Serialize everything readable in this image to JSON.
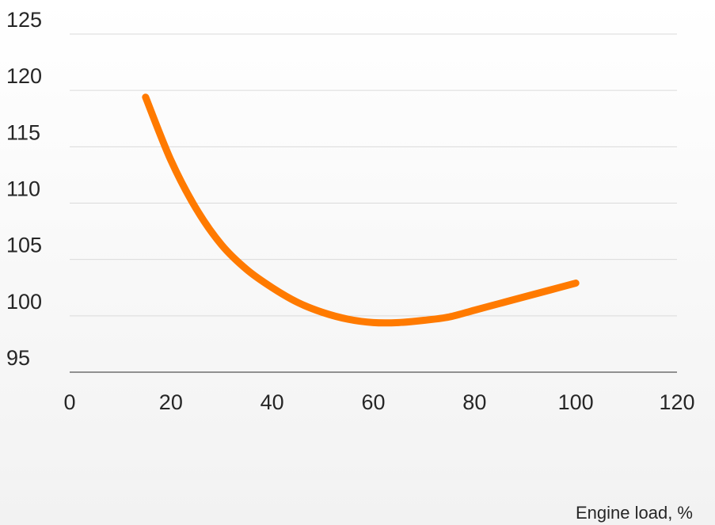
{
  "chart_data": {
    "type": "line",
    "title": "",
    "xlabel": "Engine load, %",
    "ylabel": "",
    "xlim": [
      0,
      120
    ],
    "ylim": [
      95,
      125
    ],
    "x_ticks": [
      0,
      20,
      40,
      60,
      80,
      100,
      120
    ],
    "y_ticks": [
      95,
      100,
      105,
      110,
      115,
      120,
      125
    ],
    "grid": "horizontal",
    "legend": "none",
    "series": [
      {
        "color": "#ff7a00",
        "x": [
          15,
          20,
          25,
          30,
          35,
          40,
          45,
          50,
          55,
          60,
          65,
          70,
          75,
          80,
          85,
          90,
          95,
          100
        ],
        "y": [
          119.4,
          113.8,
          109.5,
          106.3,
          104.1,
          102.5,
          101.2,
          100.3,
          99.7,
          99.4,
          99.4,
          99.6,
          99.9,
          100.5,
          101.1,
          101.7,
          102.3,
          102.9
        ]
      }
    ]
  }
}
